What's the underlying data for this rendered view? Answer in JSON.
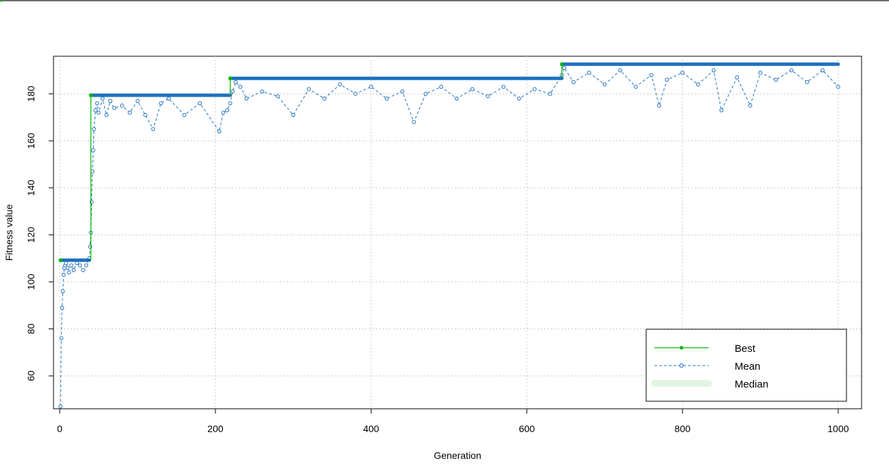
{
  "chart_data": {
    "type": "line",
    "title": "",
    "xlabel": "Generation",
    "ylabel": "Fitness value",
    "xlim": [
      -8,
      1030
    ],
    "ylim": [
      46,
      196
    ],
    "x_ticks": [
      0,
      200,
      400,
      600,
      800,
      1000
    ],
    "y_ticks": [
      60,
      80,
      100,
      120,
      140,
      160,
      180
    ],
    "grid": true,
    "legend_position": "bottom-right",
    "best_segments": [
      {
        "x_start": 1,
        "x_end": 38,
        "value": 109.2
      },
      {
        "x_start": 40,
        "x_end": 219,
        "value": 179.4
      },
      {
        "x_start": 219,
        "x_end": 645,
        "value": 186.6
      },
      {
        "x_start": 645,
        "x_end": 1000,
        "value": 192.6
      }
    ],
    "best_transitions": [
      {
        "x": 38,
        "y": 109.2
      },
      {
        "x": 39,
        "y": 158.8
      },
      {
        "x": 40,
        "y": 179.4
      }
    ],
    "mean_sample": [
      [
        1,
        47
      ],
      [
        2,
        76
      ],
      [
        3,
        89
      ],
      [
        4,
        96
      ],
      [
        5,
        103
      ],
      [
        6,
        106
      ],
      [
        7,
        107
      ],
      [
        8,
        108
      ],
      [
        10,
        106
      ],
      [
        12,
        104
      ],
      [
        15,
        107
      ],
      [
        18,
        105
      ],
      [
        22,
        108
      ],
      [
        26,
        107
      ],
      [
        30,
        105
      ],
      [
        34,
        107
      ],
      [
        38,
        110
      ],
      [
        39,
        115
      ],
      [
        40,
        121
      ],
      [
        41,
        134
      ],
      [
        42,
        147
      ],
      [
        43,
        156
      ],
      [
        44,
        165
      ],
      [
        46,
        173
      ],
      [
        48,
        176
      ],
      [
        50,
        172
      ],
      [
        55,
        178
      ],
      [
        60,
        171
      ],
      [
        65,
        177
      ],
      [
        70,
        174
      ],
      [
        80,
        175
      ],
      [
        90,
        172
      ],
      [
        100,
        177
      ],
      [
        110,
        171
      ],
      [
        120,
        165
      ],
      [
        130,
        176
      ],
      [
        140,
        178
      ],
      [
        160,
        171
      ],
      [
        180,
        176
      ],
      [
        205,
        164
      ],
      [
        210,
        172
      ],
      [
        215,
        173
      ],
      [
        219,
        176
      ],
      [
        222,
        181
      ],
      [
        226,
        185
      ],
      [
        232,
        183
      ],
      [
        240,
        178
      ],
      [
        260,
        181
      ],
      [
        280,
        179
      ],
      [
        300,
        171
      ],
      [
        320,
        182
      ],
      [
        340,
        178
      ],
      [
        360,
        184
      ],
      [
        380,
        180
      ],
      [
        400,
        183
      ],
      [
        420,
        178
      ],
      [
        440,
        181
      ],
      [
        455,
        168
      ],
      [
        470,
        180
      ],
      [
        490,
        183
      ],
      [
        510,
        178
      ],
      [
        530,
        182
      ],
      [
        550,
        179
      ],
      [
        570,
        183
      ],
      [
        590,
        178
      ],
      [
        610,
        182
      ],
      [
        630,
        180
      ],
      [
        645,
        188
      ],
      [
        648,
        191
      ],
      [
        660,
        185
      ],
      [
        680,
        189
      ],
      [
        700,
        184
      ],
      [
        720,
        190
      ],
      [
        740,
        183
      ],
      [
        760,
        188
      ],
      [
        770,
        175
      ],
      [
        780,
        186
      ],
      [
        800,
        189
      ],
      [
        820,
        184
      ],
      [
        840,
        190
      ],
      [
        850,
        173
      ],
      [
        870,
        187
      ],
      [
        887,
        175
      ],
      [
        900,
        189
      ],
      [
        920,
        186
      ],
      [
        940,
        190
      ],
      [
        960,
        185
      ],
      [
        980,
        190
      ],
      [
        1000,
        183
      ]
    ],
    "series": [
      {
        "name": "Best",
        "color": "#00b300",
        "style": "solid line with filled points"
      },
      {
        "name": "Mean",
        "color": "#1f70c0",
        "style": "dashed line with open circles"
      },
      {
        "name": "Median",
        "color": "#e2f4e2",
        "style": "thick light band"
      }
    ],
    "colors": {
      "best": "#00b300",
      "mean": "#1f70c0",
      "median": "#e2f4e2",
      "grid": "#c8c8c8"
    }
  }
}
